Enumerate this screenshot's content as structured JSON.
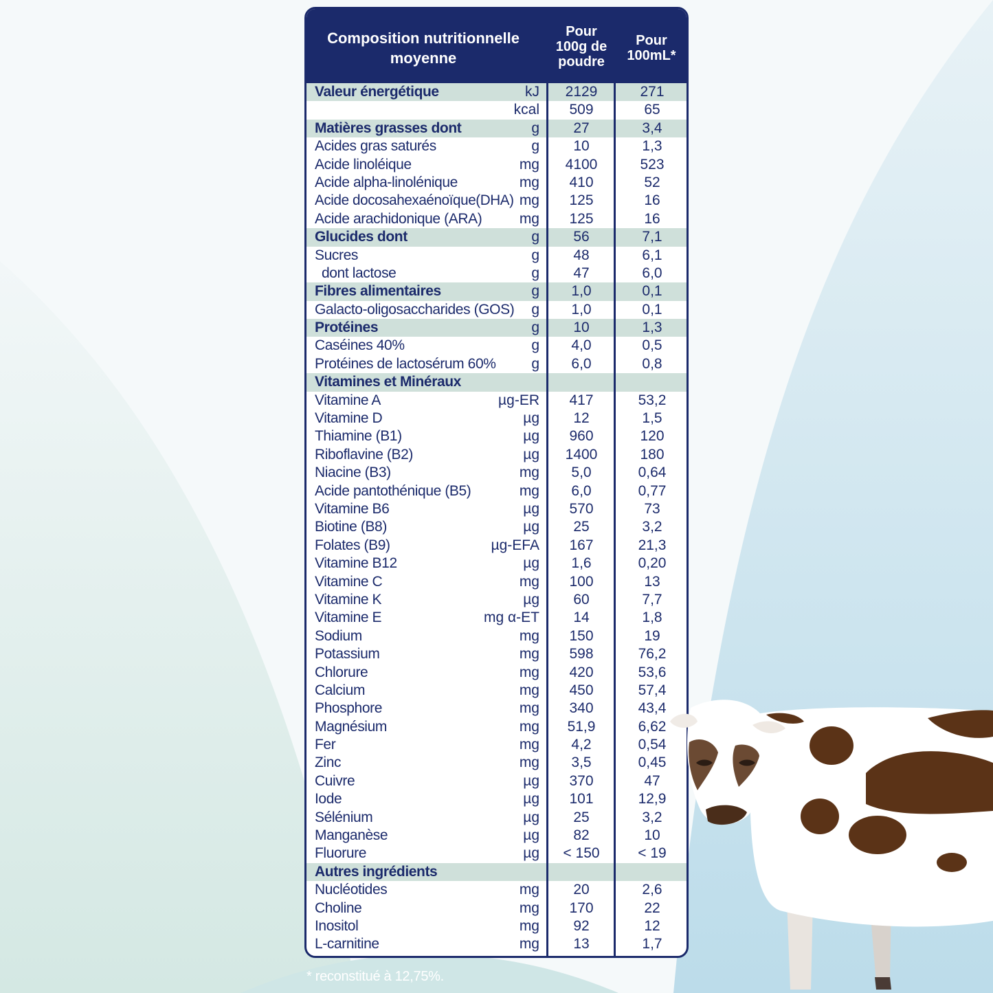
{
  "header": {
    "title": "Composition nutritionnelle moyenne",
    "col1": "Pour 100g de poudre",
    "col2": "Pour 100mL*"
  },
  "rows": [
    {
      "label": "Valeur énergétique",
      "unit": "kJ",
      "v1": "2129",
      "v2": "271",
      "type": "section"
    },
    {
      "label": "",
      "unit": "kcal",
      "v1": "509",
      "v2": "65",
      "type": "normal"
    },
    {
      "label": "Matières grasses dont",
      "unit": "g",
      "v1": "27",
      "v2": "3,4",
      "type": "section"
    },
    {
      "label": "Acides gras saturés",
      "unit": "g",
      "v1": "10",
      "v2": "1,3",
      "type": "normal"
    },
    {
      "label": "Acide linoléique",
      "unit": "mg",
      "v1": "4100",
      "v2": "523",
      "type": "normal"
    },
    {
      "label": "Acide alpha-linolénique",
      "unit": "mg",
      "v1": "410",
      "v2": "52",
      "type": "normal"
    },
    {
      "label": "Acide docosahexaénoïque(DHA)",
      "unit": "mg",
      "v1": "125",
      "v2": "16",
      "type": "normal"
    },
    {
      "label": "Acide arachidonique (ARA)",
      "unit": "mg",
      "v1": "125",
      "v2": "16",
      "type": "normal"
    },
    {
      "label": "Glucides dont",
      "unit": "g",
      "v1": "56",
      "v2": "7,1",
      "type": "section"
    },
    {
      "label": "Sucres",
      "unit": "g",
      "v1": "48",
      "v2": "6,1",
      "type": "normal"
    },
    {
      "label": "dont lactose",
      "unit": "g",
      "v1": "47",
      "v2": "6,0",
      "type": "indent"
    },
    {
      "label": "Fibres alimentaires",
      "unit": "g",
      "v1": "1,0",
      "v2": "0,1",
      "type": "section"
    },
    {
      "label": "Galacto-oligosaccharides (GOS)",
      "unit": "g",
      "v1": "1,0",
      "v2": "0,1",
      "type": "normal"
    },
    {
      "label": "Protéines",
      "unit": "g",
      "v1": "10",
      "v2": "1,3",
      "type": "section"
    },
    {
      "label": "Caséines 40%",
      "unit": "g",
      "v1": "4,0",
      "v2": "0,5",
      "type": "normal"
    },
    {
      "label": "Protéines de lactosérum 60%",
      "unit": "g",
      "v1": "6,0",
      "v2": "0,8",
      "type": "normal"
    },
    {
      "label": "Vitamines et Minéraux",
      "unit": "",
      "v1": "",
      "v2": "",
      "type": "section"
    },
    {
      "label": "Vitamine A",
      "unit": "µg-ER",
      "v1": "417",
      "v2": "53,2",
      "type": "normal"
    },
    {
      "label": "Vitamine D",
      "unit": "µg",
      "v1": "12",
      "v2": "1,5",
      "type": "normal"
    },
    {
      "label": "Thiamine (B1)",
      "unit": "µg",
      "v1": "960",
      "v2": "120",
      "type": "normal"
    },
    {
      "label": "Riboflavine (B2)",
      "unit": "µg",
      "v1": "1400",
      "v2": "180",
      "type": "normal"
    },
    {
      "label": "Niacine (B3)",
      "unit": "mg",
      "v1": "5,0",
      "v2": "0,64",
      "type": "normal"
    },
    {
      "label": "Acide pantothénique (B5)",
      "unit": "mg",
      "v1": "6,0",
      "v2": "0,77",
      "type": "normal"
    },
    {
      "label": "Vitamine B6",
      "unit": "µg",
      "v1": "570",
      "v2": "73",
      "type": "normal"
    },
    {
      "label": "Biotine (B8)",
      "unit": "µg",
      "v1": "25",
      "v2": "3,2",
      "type": "normal"
    },
    {
      "label": "Folates (B9)",
      "unit": "µg-EFA",
      "v1": "167",
      "v2": "21,3",
      "type": "normal"
    },
    {
      "label": "Vitamine B12",
      "unit": "µg",
      "v1": "1,6",
      "v2": "0,20",
      "type": "normal"
    },
    {
      "label": "Vitamine C",
      "unit": "mg",
      "v1": "100",
      "v2": "13",
      "type": "normal"
    },
    {
      "label": "Vitamine K",
      "unit": "µg",
      "v1": "60",
      "v2": "7,7",
      "type": "normal"
    },
    {
      "label": "Vitamine E",
      "unit": "mg α-ET",
      "v1": "14",
      "v2": "1,8",
      "type": "normal"
    },
    {
      "label": "Sodium",
      "unit": "mg",
      "v1": "150",
      "v2": "19",
      "type": "normal"
    },
    {
      "label": "Potassium",
      "unit": "mg",
      "v1": "598",
      "v2": "76,2",
      "type": "normal"
    },
    {
      "label": "Chlorure",
      "unit": "mg",
      "v1": "420",
      "v2": "53,6",
      "type": "normal"
    },
    {
      "label": "Calcium",
      "unit": "mg",
      "v1": "450",
      "v2": "57,4",
      "type": "normal"
    },
    {
      "label": "Phosphore",
      "unit": "mg",
      "v1": "340",
      "v2": "43,4",
      "type": "normal"
    },
    {
      "label": "Magnésium",
      "unit": "mg",
      "v1": "51,9",
      "v2": "6,62",
      "type": "normal"
    },
    {
      "label": "Fer",
      "unit": "mg",
      "v1": "4,2",
      "v2": "0,54",
      "type": "normal"
    },
    {
      "label": "Zinc",
      "unit": "mg",
      "v1": "3,5",
      "v2": "0,45",
      "type": "normal"
    },
    {
      "label": "Cuivre",
      "unit": "µg",
      "v1": "370",
      "v2": "47",
      "type": "normal"
    },
    {
      "label": "Iode",
      "unit": "µg",
      "v1": "101",
      "v2": "12,9",
      "type": "normal"
    },
    {
      "label": "Sélénium",
      "unit": "µg",
      "v1": "25",
      "v2": "3,2",
      "type": "normal"
    },
    {
      "label": "Manganèse",
      "unit": "µg",
      "v1": "82",
      "v2": "10",
      "type": "normal"
    },
    {
      "label": "Fluorure",
      "unit": "µg",
      "v1": "< 150",
      "v2": "< 19",
      "type": "normal"
    },
    {
      "label": "Autres ingrédients",
      "unit": "",
      "v1": "",
      "v2": "",
      "type": "section"
    },
    {
      "label": "Nucléotides",
      "unit": "mg",
      "v1": "20",
      "v2": "2,6",
      "type": "normal"
    },
    {
      "label": "Choline",
      "unit": "mg",
      "v1": "170",
      "v2": "22",
      "type": "normal"
    },
    {
      "label": "Inositol",
      "unit": "mg",
      "v1": "92",
      "v2": "12",
      "type": "normal"
    },
    {
      "label": "L-carnitine",
      "unit": "mg",
      "v1": "13",
      "v2": "1,7",
      "type": "normal"
    }
  ],
  "footnote": "* reconstitué à 12,75%.",
  "colors": {
    "navy": "#1b2a6b",
    "section_band": "#cfe0da",
    "background_light": "#eef5f5",
    "background_mint": "#d9eae6",
    "background_blue": "#c6e0ec"
  },
  "illustration": "cow-illustration"
}
